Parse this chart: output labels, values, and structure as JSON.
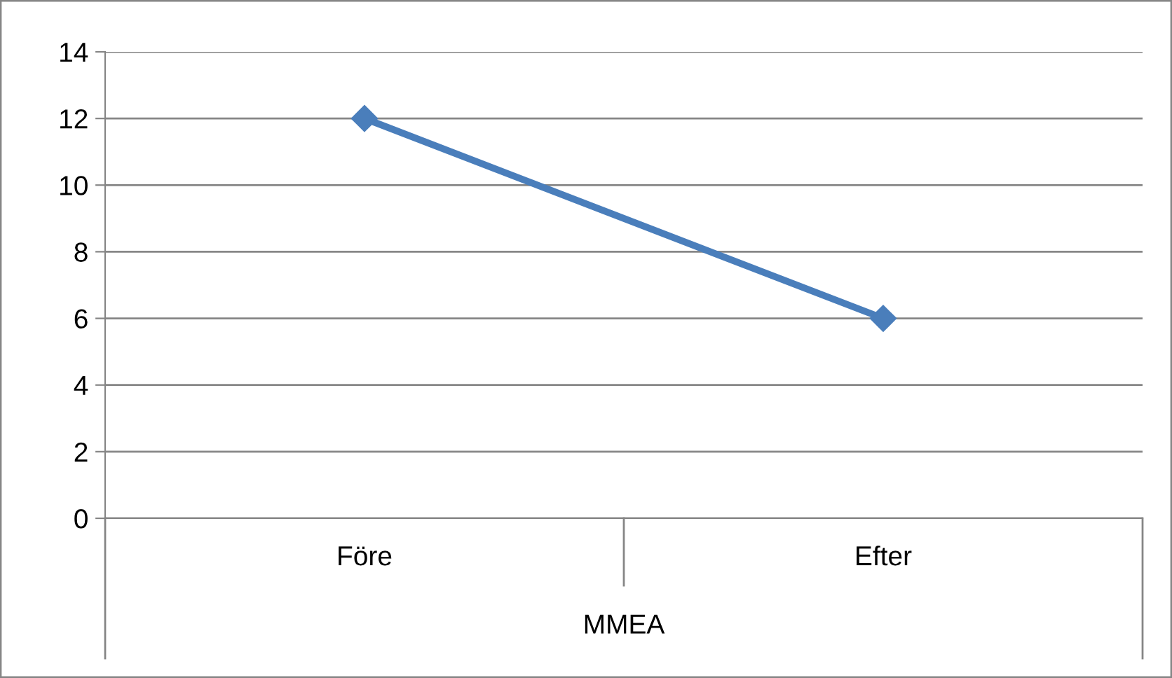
{
  "chart_data": {
    "type": "line",
    "xlabel": "MMEA",
    "categories": [
      "Före",
      "Efter"
    ],
    "series": [
      {
        "color": "#4a7ebb",
        "values": [
          12,
          6
        ]
      }
    ],
    "ylim": [
      0,
      14
    ],
    "yticks": [
      0,
      2,
      4,
      6,
      8,
      10,
      12,
      14
    ],
    "grid": "y",
    "marker": "diamond",
    "line_style": "solid"
  }
}
